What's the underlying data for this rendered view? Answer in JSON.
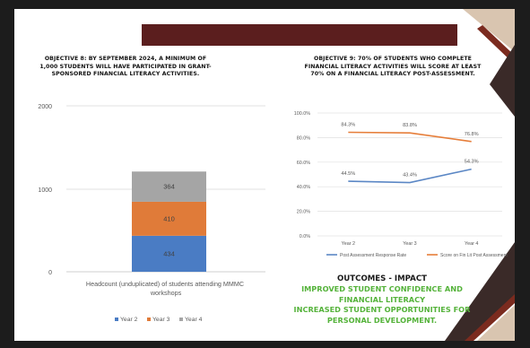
{
  "slide": {
    "colors": {
      "frame": "#1c1c1c",
      "header_bar": "#5b1e1e",
      "deco_dark": "#3a2a28",
      "deco_beige": "#d9c5b0",
      "deco_rust": "#7b2b1f"
    }
  },
  "objective8": {
    "title": "Objective 8: By September 2024, a minimum of 1,000 students will have participated in grant-sponsored financial literacy activities."
  },
  "objective9": {
    "title": "Objective 9:  70% of students who complete financial literacy activities will score at least 70% on a financial literacy post-assessment."
  },
  "outcomes": {
    "heading": "OUTCOMES - IMPACT",
    "lines": [
      "Improved student confidence and",
      "financial literacy",
      "increased student opportunities for",
      "personal development."
    ],
    "color": "#55b33b"
  },
  "chart_data": [
    {
      "type": "bar",
      "stacked": true,
      "categories": [
        "Headcount (unduplicated) of students attending MMMC workshops"
      ],
      "series": [
        {
          "name": "Year 2",
          "values": [
            434
          ],
          "color": "#4a7cc4"
        },
        {
          "name": "Year 3",
          "values": [
            410
          ],
          "color": "#e07b39"
        },
        {
          "name": "Year 4",
          "values": [
            364
          ],
          "color": "#a5a5a5"
        }
      ],
      "ylim": [
        0,
        2000
      ],
      "yticks": [
        "0",
        "1000",
        "2000"
      ],
      "grid": true,
      "legend": "bottom"
    },
    {
      "type": "line",
      "x": [
        "Year 2",
        "Year 3",
        "Year 4"
      ],
      "series": [
        {
          "name": "Post Assessment Response Rate",
          "values": [
            44.5,
            43.4,
            54.3
          ],
          "labels": [
            "44.5%",
            "43.4%",
            "54.3%"
          ],
          "color": "#5b87c5"
        },
        {
          "name": "Score on Fin Lit Post Assessment",
          "values": [
            84.3,
            83.8,
            76.8
          ],
          "labels": [
            "84.3%",
            "83.8%",
            "76.8%"
          ],
          "color": "#e67e3a"
        }
      ],
      "ylim": [
        0,
        100
      ],
      "yticks": [
        "0.0%",
        "20.0%",
        "40.0%",
        "60.0%",
        "80.0%",
        "100.0%"
      ],
      "grid": true,
      "legend": "bottom"
    }
  ]
}
